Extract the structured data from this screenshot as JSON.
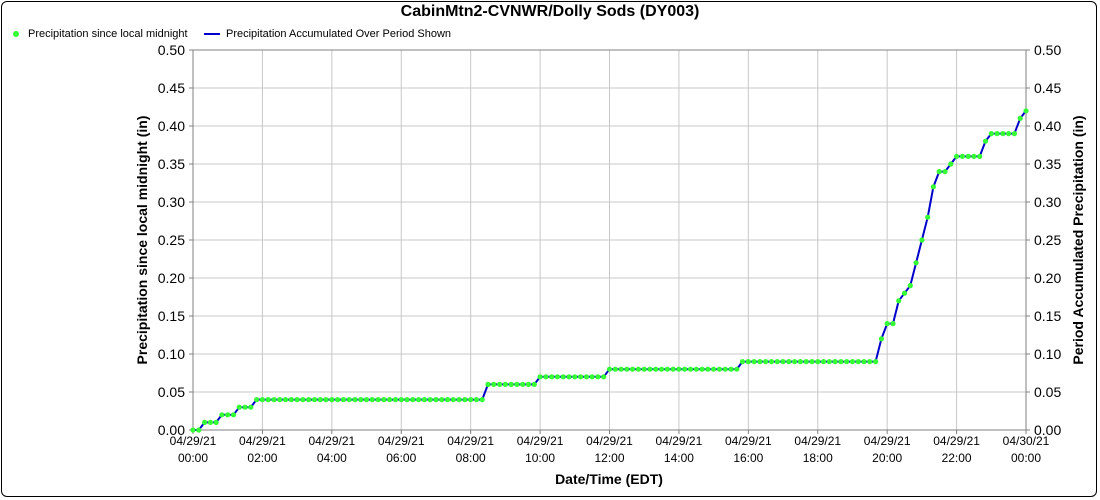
{
  "chart_data": {
    "type": "line",
    "title": "CabinMtn2-CVNWR/Dolly Sods (DY003)",
    "xlabel": "Date/Time (EDT)",
    "ylabel": "Precipitation since local midnight (in)",
    "ylabel_right": "Period Accumulated Precipitation (in)",
    "x_unit": "hours since 04/29/21 00:00 EDT",
    "xlim": [
      0,
      24
    ],
    "ylim": [
      0,
      0.5
    ],
    "yticks": [
      "0.00",
      "0.05",
      "0.10",
      "0.15",
      "0.20",
      "0.25",
      "0.30",
      "0.35",
      "0.40",
      "0.45",
      "0.50"
    ],
    "xticks": [
      {
        "date": "04/29/21",
        "time": "00:00",
        "x": 0
      },
      {
        "date": "04/29/21",
        "time": "02:00",
        "x": 2
      },
      {
        "date": "04/29/21",
        "time": "04:00",
        "x": 4
      },
      {
        "date": "04/29/21",
        "time": "06:00",
        "x": 6
      },
      {
        "date": "04/29/21",
        "time": "08:00",
        "x": 8
      },
      {
        "date": "04/29/21",
        "time": "10:00",
        "x": 10
      },
      {
        "date": "04/29/21",
        "time": "12:00",
        "x": 12
      },
      {
        "date": "04/29/21",
        "time": "14:00",
        "x": 14
      },
      {
        "date": "04/29/21",
        "time": "16:00",
        "x": 16
      },
      {
        "date": "04/29/21",
        "time": "18:00",
        "x": 18
      },
      {
        "date": "04/29/21",
        "time": "20:00",
        "x": 20
      },
      {
        "date": "04/29/21",
        "time": "22:00",
        "x": 22
      },
      {
        "date": "04/30/21",
        "time": "00:00",
        "x": 24
      }
    ],
    "grid": true,
    "legend_position": "top-left",
    "series": [
      {
        "name": "Precipitation since local midnight",
        "style": "markers",
        "color": "#33ff33",
        "steps": [
          [
            0.0,
            0.0
          ],
          [
            0.33,
            0.01
          ],
          [
            0.75,
            0.02
          ],
          [
            1.17,
            0.03
          ],
          [
            1.75,
            0.04
          ],
          [
            8.5,
            0.06
          ],
          [
            10.0,
            0.07
          ],
          [
            12.0,
            0.08
          ],
          [
            15.83,
            0.09
          ],
          [
            19.67,
            0.11
          ],
          [
            19.83,
            0.12
          ],
          [
            20.0,
            0.14
          ],
          [
            20.25,
            0.17
          ],
          [
            20.42,
            0.18
          ],
          [
            20.58,
            0.19
          ],
          [
            20.75,
            0.22
          ],
          [
            20.92,
            0.25
          ],
          [
            21.08,
            0.28
          ],
          [
            21.25,
            0.32
          ],
          [
            21.42,
            0.34
          ],
          [
            21.75,
            0.35
          ],
          [
            21.92,
            0.36
          ],
          [
            22.67,
            0.37
          ],
          [
            22.83,
            0.38
          ],
          [
            23.0,
            0.39
          ],
          [
            23.75,
            0.41
          ],
          [
            24.0,
            0.42
          ]
        ]
      },
      {
        "name": "Precipitation Accumulated Over Period Shown",
        "style": "line",
        "color": "#0000cc"
      }
    ]
  }
}
